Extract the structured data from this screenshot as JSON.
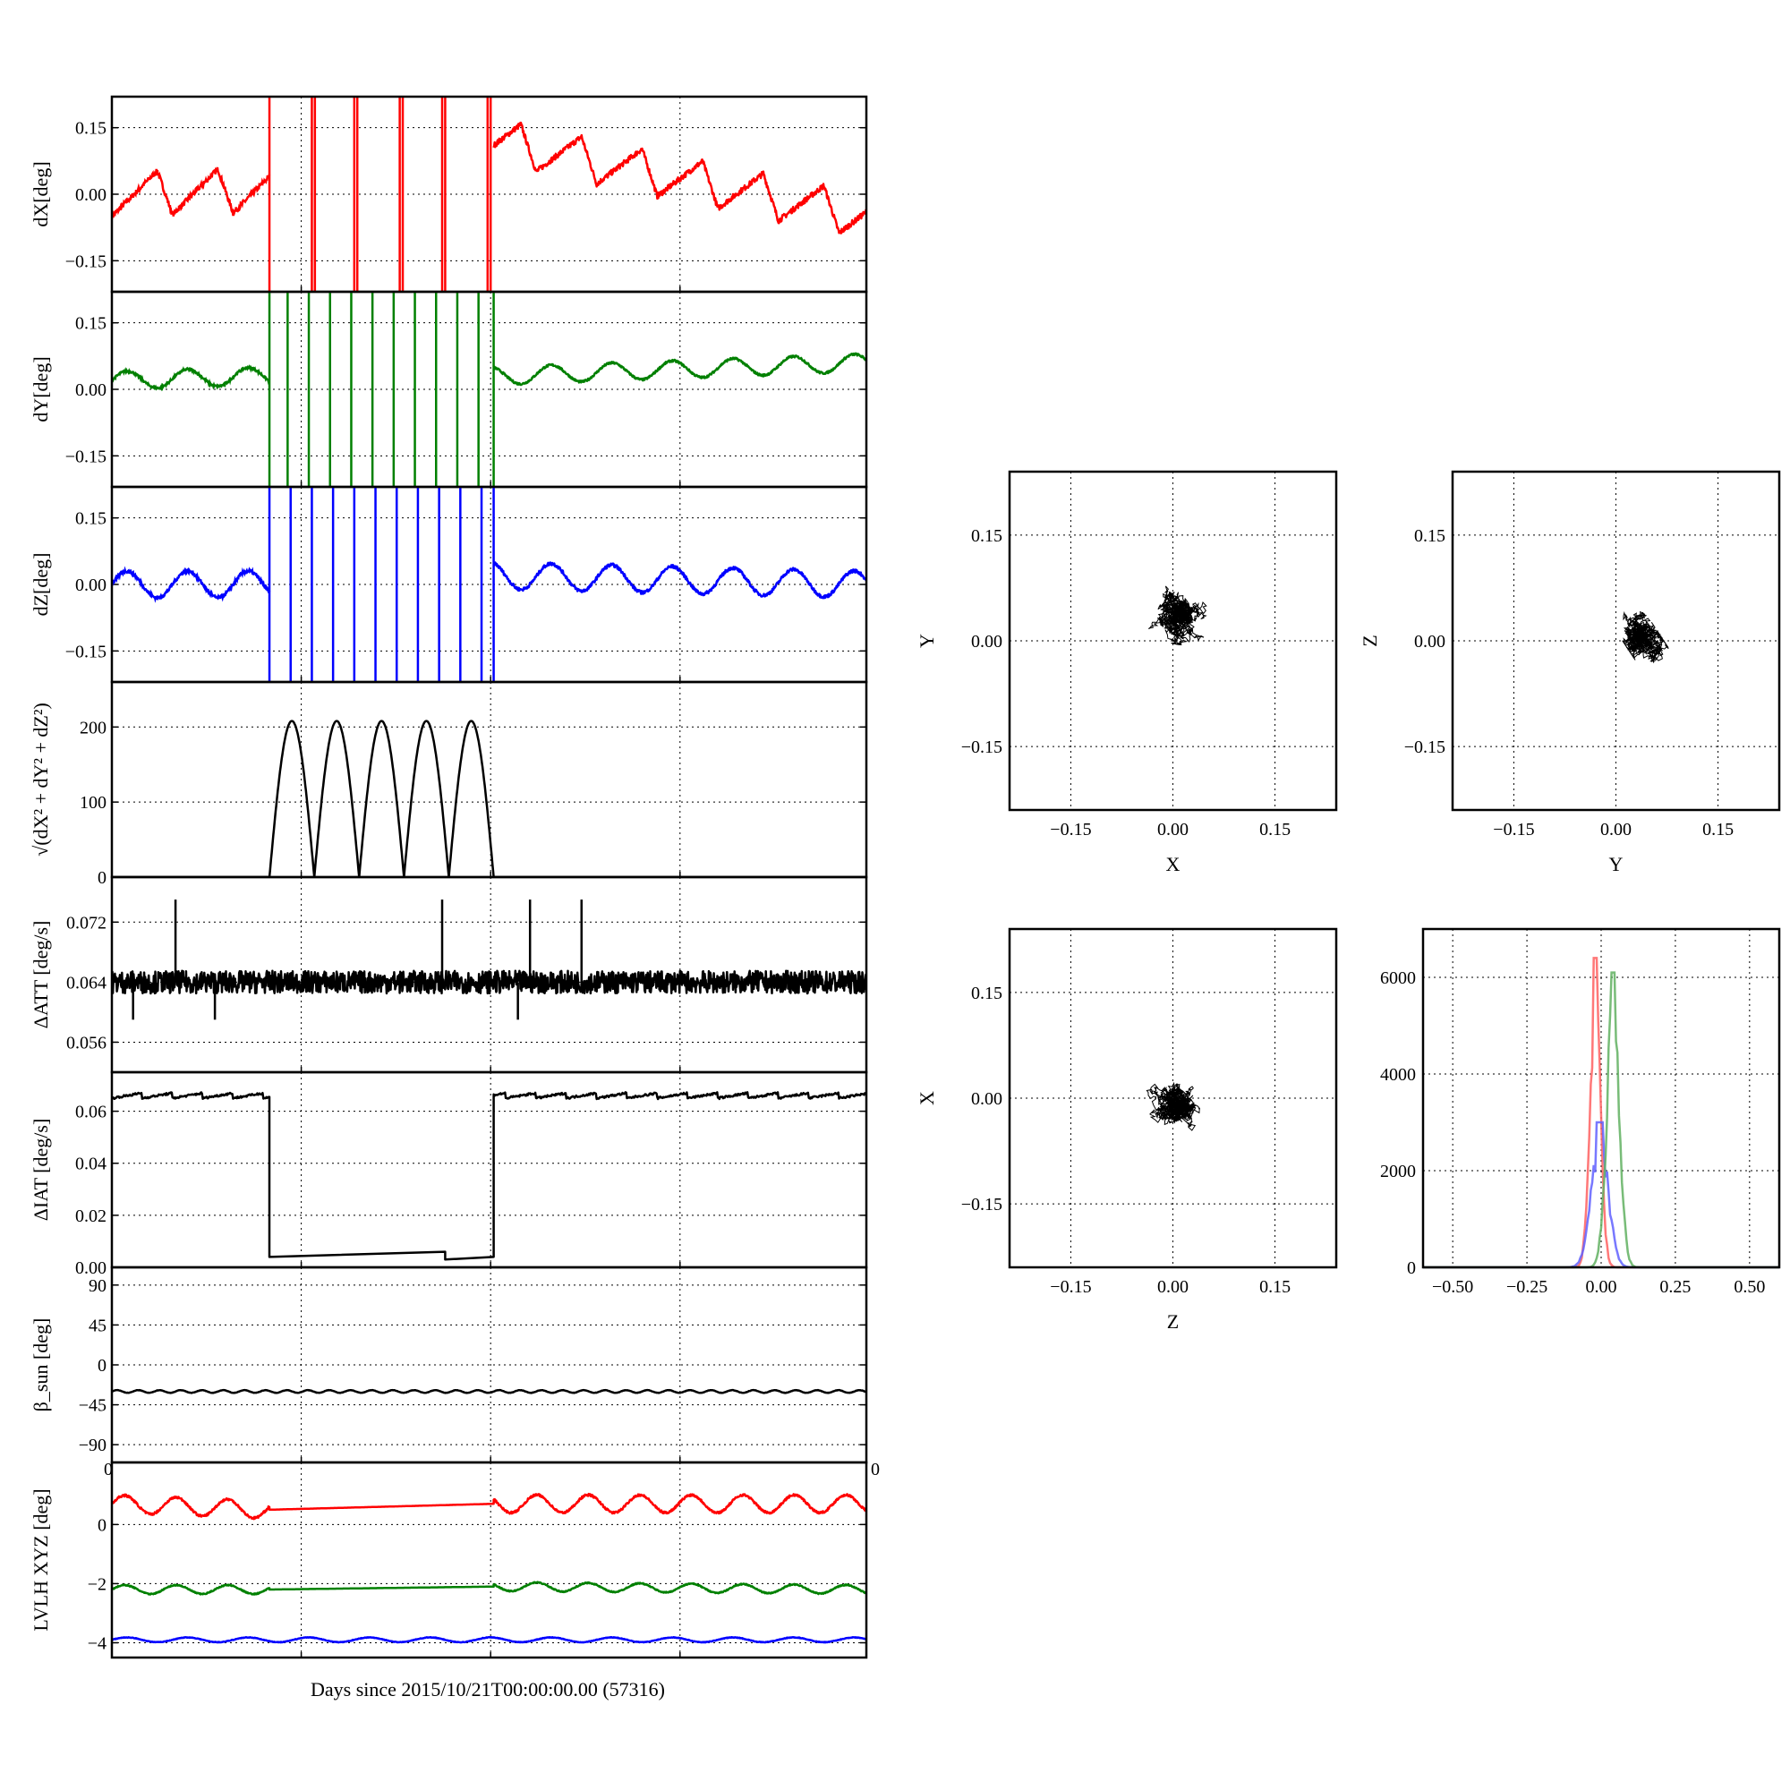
{
  "chart_data": [
    {
      "id": "dx",
      "type": "line",
      "ylabel": "dX[deg]",
      "ylim": [
        -0.22,
        0.22
      ],
      "yticks": [
        0.15,
        0.0,
        -0.15
      ],
      "ytick_labels": [
        "0.15",
        "0.00",
        "−0.15"
      ],
      "series": [
        {
          "color": "#ff0000",
          "kind": "wave",
          "x": [
            0,
            5.2,
            10.5,
            12.6,
            24.9
          ],
          "y": [
            0.0,
            0.01,
            -0.04,
            0.12,
            -0.05
          ],
          "amp": 0.05,
          "period": 2
        }
      ],
      "spikes": [
        {
          "color": "#ff0000",
          "x": [
            5.2,
            6.6,
            6.7,
            8.0,
            8.1,
            9.5,
            9.6,
            10.9,
            11.0,
            12.4,
            12.5
          ],
          "dir": "bi"
        }
      ]
    },
    {
      "id": "dy",
      "type": "line",
      "ylabel": "dY[deg]",
      "ylim": [
        -0.22,
        0.22
      ],
      "yticks": [
        0.15,
        0.0,
        -0.15
      ],
      "ytick_labels": [
        "0.15",
        "0.00",
        "−0.15"
      ],
      "series": [
        {
          "color": "#008000",
          "kind": "wave",
          "x": [
            0,
            5.2,
            12.6,
            24.9
          ],
          "y": [
            0.02,
            0.03,
            0.03,
            0.06
          ],
          "amp": 0.02,
          "period": 2
        }
      ],
      "spikes": [
        {
          "color": "#008000",
          "x": [
            5.2,
            5.8,
            6.5,
            7.2,
            7.9,
            8.6,
            9.3,
            10.0,
            10.7,
            11.4,
            12.1,
            12.6
          ],
          "dir": "bi"
        }
      ]
    },
    {
      "id": "dz",
      "type": "line",
      "ylabel": "dZ[deg]",
      "ylim": [
        -0.22,
        0.22
      ],
      "yticks": [
        0.15,
        0.0,
        -0.15
      ],
      "ytick_labels": [
        "0.15",
        "0.00",
        "−0.15"
      ],
      "series": [
        {
          "color": "#0000ff",
          "kind": "wave",
          "x": [
            0,
            5.2,
            12.6,
            24.9
          ],
          "y": [
            0.0,
            0.0,
            0.02,
            0.0
          ],
          "amp": 0.03,
          "period": 2
        }
      ],
      "spikes": [
        {
          "color": "#0000ff",
          "x": [
            5.2,
            5.9,
            6.6,
            7.3,
            8.0,
            8.7,
            9.4,
            10.1,
            10.8,
            11.5,
            12.2,
            12.6
          ],
          "dir": "bi"
        }
      ]
    },
    {
      "id": "norm",
      "type": "line",
      "ylabel": "√(dX² + dY² + dZ²)",
      "ylim": [
        0,
        260
      ],
      "yticks": [
        0,
        100,
        200
      ],
      "ytick_labels": [
        "0",
        "100",
        "200"
      ],
      "series": [
        {
          "color": "#000000",
          "kind": "humps",
          "x_start": 5.2,
          "x_end": 12.6,
          "count": 5,
          "peak": 208
        }
      ]
    },
    {
      "id": "datt",
      "type": "line",
      "ylabel": "ΔATT [deg/s]",
      "ylim": [
        0.052,
        0.078
      ],
      "yticks": [
        0.072,
        0.064,
        0.056
      ],
      "ytick_labels": [
        "0.072",
        "0.064",
        "0.056"
      ],
      "series": [
        {
          "color": "#000000",
          "kind": "noise",
          "x": [
            0,
            24.9
          ],
          "y": [
            0.064,
            0.064
          ],
          "amp": 0.0015
        }
      ],
      "spikes": [
        {
          "color": "#000000",
          "x": [
            2.1,
            10.9,
            13.8,
            15.5
          ],
          "dir": "up",
          "to": 0.075
        },
        {
          "color": "#000000",
          "x": [
            0.7,
            3.4,
            13.4
          ],
          "dir": "down",
          "to": 0.059
        }
      ]
    },
    {
      "id": "diat",
      "type": "line",
      "ylabel": "ΔIAT [deg/s]",
      "ylim": [
        0,
        0.075
      ],
      "yticks": [
        0.0,
        0.02,
        0.04,
        0.06
      ],
      "ytick_labels": [
        "0.00",
        "0.02",
        "0.04",
        "0.06"
      ],
      "series": [
        {
          "color": "#000000",
          "kind": "sawtooth",
          "x": [
            0,
            5.2,
            5.2,
            11.0,
            11.0,
            12.6,
            12.6,
            24.9
          ],
          "y": [
            0.066,
            0.066,
            0.004,
            0.006,
            0.003,
            0.004,
            0.066,
            0.066
          ]
        }
      ]
    },
    {
      "id": "beta",
      "type": "line",
      "ylabel": "β_sun [deg]",
      "ylim": [
        -110,
        110
      ],
      "yticks": [
        90,
        45,
        0,
        -45,
        -90
      ],
      "ytick_labels": [
        "90",
        "45",
        "0",
        "−45",
        "−90"
      ],
      "series": [
        {
          "color": "#000000",
          "kind": "wave",
          "x": [
            0,
            24.9
          ],
          "y": [
            -30,
            -30
          ],
          "amp": 1.5,
          "period": 0.7
        }
      ]
    },
    {
      "id": "lvlh",
      "type": "line",
      "ylabel": "LVLH XYZ [deg]",
      "ylim": [
        -4.5,
        2.1
      ],
      "yticks": [
        0,
        -2,
        -4
      ],
      "ytick_labels": [
        "0",
        "−2",
        "−4"
      ],
      "xticks_top": [
        "0",
        "0"
      ],
      "series": [
        {
          "color": "#ff0000",
          "kind": "wave",
          "x": [
            0,
            5.2,
            12.6,
            24.9
          ],
          "y": [
            0.7,
            0.5,
            0.7,
            0.7
          ],
          "amp": 0.3,
          "period": 1.7
        },
        {
          "color": "#008000",
          "kind": "wave",
          "x": [
            0,
            5.2,
            12.6,
            24.9
          ],
          "y": [
            -2.2,
            -2.2,
            -2.1,
            -2.2
          ],
          "amp": 0.15,
          "period": 1.7
        },
        {
          "color": "#0000ff",
          "kind": "wave",
          "x": [
            0,
            24.9
          ],
          "y": [
            -3.9,
            -3.9
          ],
          "amp": 0.08,
          "period": 2
        }
      ]
    },
    {
      "id": "xy",
      "type": "scatter",
      "xlabel": "X",
      "ylabel": "Y",
      "xlim": [
        -0.24,
        0.24
      ],
      "ylim": [
        -0.24,
        0.24
      ],
      "ticks": [
        -0.15,
        0.0,
        0.15
      ],
      "tick_labels": [
        "−0.15",
        "0.00",
        "0.15"
      ],
      "cloud": {
        "cx": 0.01,
        "cy": 0.035,
        "rx": 0.05,
        "ry": 0.04,
        "tilt": 0.2
      }
    },
    {
      "id": "yz",
      "type": "scatter",
      "xlabel": "Y",
      "ylabel": "Z",
      "xlim": [
        -0.24,
        0.24
      ],
      "ylim": [
        -0.24,
        0.24
      ],
      "ticks": [
        -0.15,
        0.0,
        0.15
      ],
      "tick_labels": [
        "−0.15",
        "0.00",
        "0.15"
      ],
      "cloud": {
        "cx": 0.04,
        "cy": 0.0,
        "rx": 0.025,
        "ry": 0.06,
        "tilt": -0.6
      }
    },
    {
      "id": "zx",
      "type": "scatter",
      "xlabel": "Z",
      "ylabel": "X",
      "xlim": [
        -0.24,
        0.24
      ],
      "ylim": [
        -0.24,
        0.24
      ],
      "ticks": [
        -0.15,
        0.0,
        0.15
      ],
      "tick_labels": [
        "−0.15",
        "0.00",
        "0.15"
      ],
      "cloud": {
        "cx": 0.0,
        "cy": -0.005,
        "rx": 0.04,
        "ry": 0.07,
        "tilt": 0.1
      }
    },
    {
      "id": "hist",
      "type": "line",
      "xlim": [
        -0.6,
        0.6
      ],
      "ylim": [
        0,
        7000
      ],
      "xticks": [
        -0.5,
        -0.25,
        0.0,
        0.25,
        0.5
      ],
      "xtick_labels": [
        "−0.50",
        "−0.25",
        "0.00",
        "0.25",
        "0.50"
      ],
      "yticks": [
        0,
        2000,
        4000,
        6000
      ],
      "ytick_labels": [
        "0",
        "2000",
        "4000",
        "6000"
      ],
      "series": [
        {
          "color": "#ff6060",
          "center": -0.02,
          "width": 0.025,
          "peak": 6400
        },
        {
          "color": "#6060ff",
          "center": -0.005,
          "width": 0.04,
          "peak": 3000
        },
        {
          "color": "#60b060",
          "center": 0.04,
          "width": 0.03,
          "peak": 6100
        }
      ]
    }
  ],
  "xlabel": "Days since 2015/10/21T00:00:00.00 (57316)"
}
